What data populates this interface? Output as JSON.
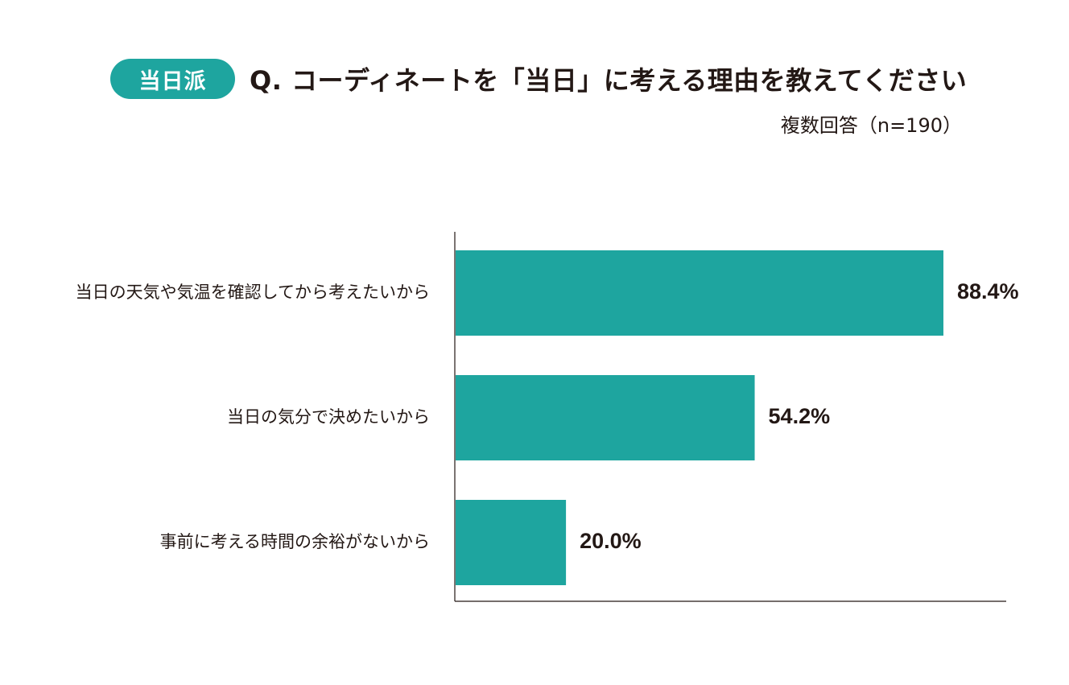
{
  "header": {
    "badge": "当日派",
    "question": "Q. コーディネートを「当日」に考える理由を教えてください",
    "note": "複数回答（n=190）"
  },
  "colors": {
    "accent": "#1ea59f",
    "text": "#231815",
    "axis": "#231815"
  },
  "chart_data": {
    "type": "bar",
    "orientation": "horizontal",
    "categories": [
      "当日の天気や気温を確認してから考えたいから",
      "当日の気分で決めたいから",
      "事前に考える時間の余裕がないから"
    ],
    "values": [
      88.4,
      54.2,
      20.0
    ],
    "value_labels": [
      "88.4%",
      "54.2%",
      "20.0%"
    ],
    "xlim": [
      0,
      100
    ],
    "grid": false,
    "legend": "none"
  }
}
